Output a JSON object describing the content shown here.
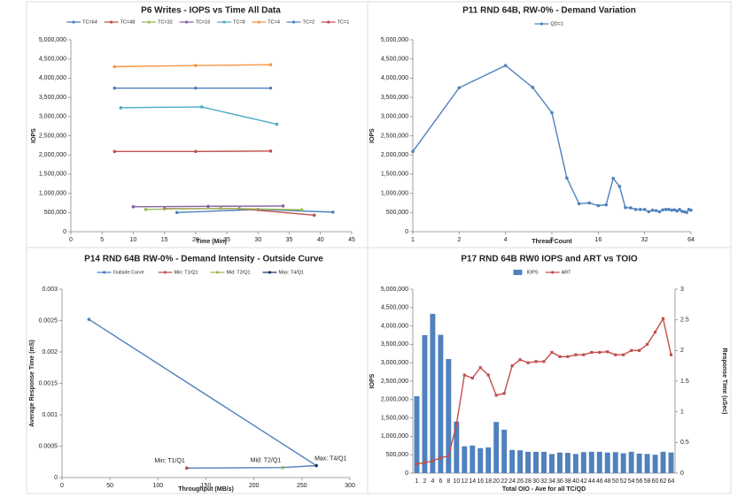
{
  "chart_data": [
    {
      "type": "line",
      "title": "P6 Writes - IOPS vs Time All Data",
      "xlabel": "Time (Min)",
      "ylabel": "IOPS",
      "xlim": [
        0,
        45
      ],
      "xticks": [
        0,
        5,
        10,
        15,
        20,
        25,
        30,
        35,
        40,
        45
      ],
      "ylim": [
        0,
        5000000
      ],
      "yticks": [
        0,
        {
          "value": 500000,
          "label": "500,000"
        },
        {
          "value": 1000000,
          "label": "1,000,000"
        },
        {
          "value": 1500000,
          "label": "1,500,000"
        },
        {
          "value": 2000000,
          "label": "2,000,000"
        },
        {
          "value": 2500000,
          "label": "2,500,000"
        },
        {
          "value": 3000000,
          "label": "3,000,000"
        },
        {
          "value": 3500000,
          "label": "3,500,000"
        },
        {
          "value": 4000000,
          "label": "4,000,000"
        },
        {
          "value": 4500000,
          "label": "4,500,000"
        },
        {
          "value": 5000000,
          "label": "5,000,000"
        }
      ],
      "legend": "top",
      "series": [
        {
          "name": "TC=64",
          "color": "#4f81bd",
          "x": [
            17,
            30,
            42
          ],
          "values": [
            500000,
            580000,
            510000
          ]
        },
        {
          "name": "TC=48",
          "color": "#c0504d",
          "x": [
            15,
            27,
            39
          ],
          "values": [
            600000,
            600000,
            430000
          ]
        },
        {
          "name": "TC=32",
          "color": "#9bbb59",
          "x": [
            12,
            24,
            37
          ],
          "values": [
            580000,
            610000,
            570000
          ]
        },
        {
          "name": "TC=16",
          "color": "#8064a2",
          "x": [
            10,
            22,
            34
          ],
          "values": [
            650000,
            660000,
            670000
          ]
        },
        {
          "name": "TC=8",
          "color": "#4bacc6",
          "x": [
            8,
            21,
            33
          ],
          "values": [
            3230000,
            3250000,
            2800000
          ]
        },
        {
          "name": "TC=4",
          "color": "#f79646",
          "x": [
            7,
            20,
            32
          ],
          "values": [
            4300000,
            4330000,
            4350000
          ]
        },
        {
          "name": "TC=2",
          "color": "#4f81bd",
          "x": [
            7,
            20,
            32
          ],
          "values": [
            3740000,
            3740000,
            3740000
          ]
        },
        {
          "name": "TC=1",
          "color": "#c0504d",
          "x": [
            7,
            20,
            32
          ],
          "values": [
            2090000,
            2090000,
            2100000
          ]
        }
      ]
    },
    {
      "type": "line",
      "title": "P11 RND 64B, RW-0% - Demand Variation",
      "xlabel": "Thread Count",
      "ylabel": "IOPS",
      "xscale": "log",
      "xlim": [
        1,
        64
      ],
      "xticks": [
        1,
        2,
        4,
        8,
        16,
        32,
        64
      ],
      "ylim": [
        0,
        5000000
      ],
      "yticks": [
        0,
        {
          "value": 500000,
          "label": "500,000"
        },
        {
          "value": 1000000,
          "label": "1,000,000"
        },
        {
          "value": 1500000,
          "label": "1,500,000"
        },
        {
          "value": 2000000,
          "label": "2,000,000"
        },
        {
          "value": 2500000,
          "label": "2,500,000"
        },
        {
          "value": 3000000,
          "label": "3,000,000"
        },
        {
          "value": 3500000,
          "label": "3,500,000"
        },
        {
          "value": 4000000,
          "label": "4,000,000"
        },
        {
          "value": 4500000,
          "label": "4,500,000"
        },
        {
          "value": 5000000,
          "label": "5,000,000"
        }
      ],
      "legend": "top",
      "series": [
        {
          "name": "QD=1",
          "color": "#4f81bd",
          "x": [
            1,
            2,
            4,
            6,
            8,
            10,
            12,
            14,
            16,
            18,
            20,
            22,
            24,
            26,
            28,
            30,
            32,
            34,
            36,
            38,
            40,
            42,
            44,
            46,
            48,
            50,
            52,
            54,
            56,
            58,
            60,
            62,
            64
          ],
          "values": [
            2090000,
            3750000,
            4330000,
            3760000,
            3100000,
            1400000,
            730000,
            750000,
            680000,
            700000,
            1390000,
            1180000,
            630000,
            620000,
            580000,
            580000,
            580000,
            520000,
            560000,
            550000,
            520000,
            570000,
            580000,
            580000,
            560000,
            570000,
            540000,
            580000,
            530000,
            520000,
            500000,
            580000,
            560000
          ]
        }
      ]
    },
    {
      "type": "line",
      "title": "P14 RND 64B RW-0% - Demand Intensity - Outside Curve",
      "xlabel": "Throughput (MB/s)",
      "ylabel": "Average Response Time (mS)",
      "xlim": [
        0,
        300
      ],
      "xticks": [
        0,
        50,
        100,
        150,
        200,
        250,
        300
      ],
      "ylim": [
        0,
        0.003
      ],
      "yticks": [
        0,
        0.0005,
        0.001,
        0.0015,
        0.002,
        0.0025,
        0.003
      ],
      "legend": "top",
      "label_points": true,
      "series": [
        {
          "name": "Outside Curve",
          "color": "#4f81bd",
          "x": [
            28,
            265,
            230,
            130
          ],
          "values": [
            0.00252,
            0.00019,
            0.00016,
            0.00015
          ]
        },
        {
          "name": "Min: T1/Q1",
          "color": "#c0504d",
          "x": [
            130
          ],
          "values": [
            0.00015
          ]
        },
        {
          "name": "Mid: T2/Q1",
          "color": "#9bbb59",
          "x": [
            230
          ],
          "values": [
            0.00016
          ]
        },
        {
          "name": "Max: T4/Q1",
          "color": "#1f3864",
          "x": [
            265
          ],
          "values": [
            0.00019
          ]
        }
      ]
    },
    {
      "type": "combo",
      "title": "P17 RND 64B RW0 IOPS and ART vs TOIO",
      "xlabel": "Total OIO - Ave for all TC/QD",
      "ylabel": "IOPS",
      "y2label": "Response Time (uSec)",
      "categories": [
        "1",
        "2",
        "4",
        "6",
        "8",
        "10",
        "12",
        "14",
        "16",
        "18",
        "20",
        "22",
        "24",
        "26",
        "28",
        "30",
        "32",
        "34",
        "36",
        "38",
        "40",
        "42",
        "44",
        "46",
        "48",
        "50",
        "52",
        "54",
        "56",
        "58",
        "60",
        "62",
        "64"
      ],
      "ylim": [
        0,
        5000000
      ],
      "yticks": [
        0,
        {
          "value": 500000,
          "label": "500,000"
        },
        {
          "value": 1000000,
          "label": "1,000,000"
        },
        {
          "value": 1500000,
          "label": "1,500,000"
        },
        {
          "value": 2000000,
          "label": "2,000,000"
        },
        {
          "value": 2500000,
          "label": "2,500,000"
        },
        {
          "value": 3000000,
          "label": "3,000,000"
        },
        {
          "value": 3500000,
          "label": "3,500,000"
        },
        {
          "value": 4000000,
          "label": "4,000,000"
        },
        {
          "value": 4500000,
          "label": "4,500,000"
        },
        {
          "value": 5000000,
          "label": "5,000,000"
        }
      ],
      "y2lim": [
        0,
        3
      ],
      "y2ticks": [
        0,
        0.5,
        1,
        1.5,
        2,
        2.5,
        3
      ],
      "legend": "top",
      "series": [
        {
          "name": "IOPS",
          "color": "#4f81bd",
          "kind": "bar",
          "values": [
            2090000,
            3750000,
            4330000,
            3760000,
            3100000,
            1400000,
            730000,
            750000,
            680000,
            700000,
            1390000,
            1180000,
            630000,
            620000,
            580000,
            580000,
            580000,
            520000,
            560000,
            550000,
            520000,
            570000,
            580000,
            580000,
            560000,
            570000,
            540000,
            580000,
            530000,
            520000,
            500000,
            580000,
            560000
          ]
        },
        {
          "name": "ART",
          "color": "#c0504d",
          "kind": "line",
          "axis": "y2",
          "values": [
            0.15,
            0.17,
            0.2,
            0.25,
            0.28,
            0.8,
            1.6,
            1.55,
            1.72,
            1.6,
            1.27,
            1.3,
            1.75,
            1.85,
            1.8,
            1.82,
            1.82,
            1.97,
            1.9,
            1.9,
            1.93,
            1.93,
            1.97,
            1.97,
            1.98,
            1.93,
            1.93,
            2.0,
            2.0,
            2.1,
            2.3,
            2.52,
            1.93
          ]
        }
      ]
    }
  ]
}
